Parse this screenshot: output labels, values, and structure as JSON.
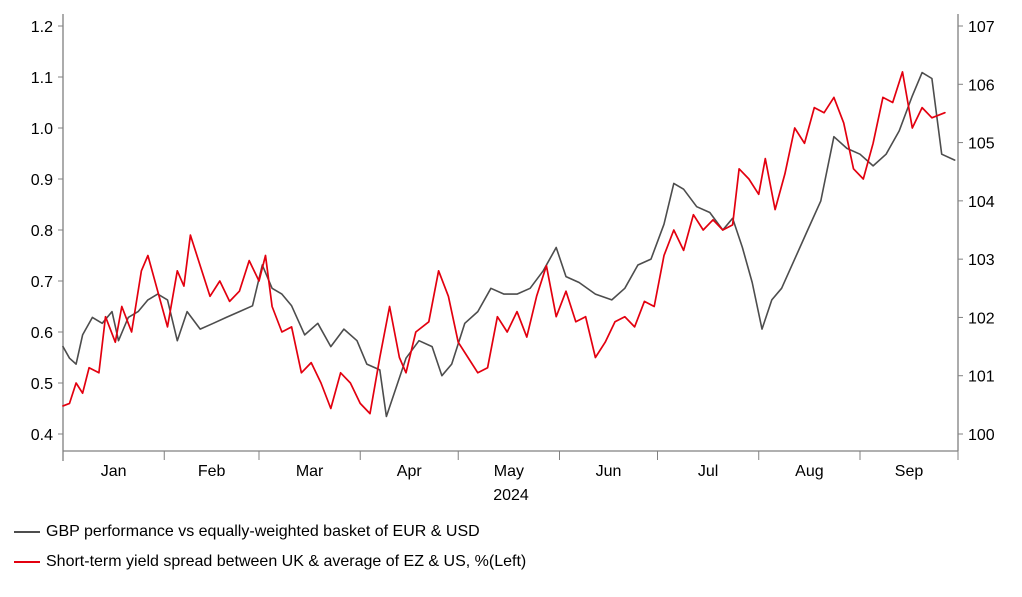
{
  "chart_data": {
    "type": "line",
    "left_axis": {
      "range": [
        0.4,
        1.2
      ],
      "ticks": [
        "0.4",
        "0.5",
        "0.6",
        "0.7",
        "0.8",
        "0.9",
        "1.0",
        "1.1",
        "1.2"
      ]
    },
    "right_axis": {
      "range": [
        100,
        107
      ],
      "ticks": [
        "100",
        "101",
        "102",
        "103",
        "104",
        "105",
        "106",
        "107"
      ]
    },
    "x_axis": {
      "months": [
        "Jan",
        "Feb",
        "Mar",
        "Apr",
        "May",
        "Jun",
        "Jul",
        "Aug",
        "Sep"
      ],
      "year_label": "2024"
    },
    "series": [
      {
        "name": "GBP performance vs equally-weighted basket of EUR & USD",
        "axis": "right",
        "color": "#4d4d4d",
        "points": [
          [
            "2024-01-01",
            101.5
          ],
          [
            "2024-01-03",
            101.3
          ],
          [
            "2024-01-05",
            101.2
          ],
          [
            "2024-01-07",
            101.7
          ],
          [
            "2024-01-10",
            102.0
          ],
          [
            "2024-01-13",
            101.9
          ],
          [
            "2024-01-16",
            102.1
          ],
          [
            "2024-01-18",
            101.6
          ],
          [
            "2024-01-21",
            102.0
          ],
          [
            "2024-01-24",
            102.1
          ],
          [
            "2024-01-27",
            102.3
          ],
          [
            "2024-01-30",
            102.4
          ],
          [
            "2024-02-02",
            102.3
          ],
          [
            "2024-02-05",
            101.6
          ],
          [
            "2024-02-08",
            102.1
          ],
          [
            "2024-02-12",
            101.8
          ],
          [
            "2024-02-16",
            101.9
          ],
          [
            "2024-02-20",
            102.0
          ],
          [
            "2024-02-24",
            102.1
          ],
          [
            "2024-02-28",
            102.2
          ],
          [
            "2024-03-02",
            102.9
          ],
          [
            "2024-03-05",
            102.5
          ],
          [
            "2024-03-08",
            102.4
          ],
          [
            "2024-03-11",
            102.2
          ],
          [
            "2024-03-15",
            101.7
          ],
          [
            "2024-03-19",
            101.9
          ],
          [
            "2024-03-23",
            101.5
          ],
          [
            "2024-03-27",
            101.8
          ],
          [
            "2024-03-31",
            101.6
          ],
          [
            "2024-04-03",
            101.2
          ],
          [
            "2024-04-07",
            101.1
          ],
          [
            "2024-04-09",
            100.3
          ],
          [
            "2024-04-12",
            100.8
          ],
          [
            "2024-04-15",
            101.3
          ],
          [
            "2024-04-19",
            101.6
          ],
          [
            "2024-04-23",
            101.5
          ],
          [
            "2024-04-26",
            101.0
          ],
          [
            "2024-04-29",
            101.2
          ],
          [
            "2024-05-03",
            101.9
          ],
          [
            "2024-05-07",
            102.1
          ],
          [
            "2024-05-11",
            102.5
          ],
          [
            "2024-05-15",
            102.4
          ],
          [
            "2024-05-19",
            102.4
          ],
          [
            "2024-05-23",
            102.5
          ],
          [
            "2024-05-27",
            102.8
          ],
          [
            "2024-05-31",
            103.2
          ],
          [
            "2024-06-03",
            102.7
          ],
          [
            "2024-06-07",
            102.6
          ],
          [
            "2024-06-12",
            102.4
          ],
          [
            "2024-06-17",
            102.3
          ],
          [
            "2024-06-21",
            102.5
          ],
          [
            "2024-06-25",
            102.9
          ],
          [
            "2024-06-29",
            103.0
          ],
          [
            "2024-07-03",
            103.6
          ],
          [
            "2024-07-06",
            104.3
          ],
          [
            "2024-07-09",
            104.2
          ],
          [
            "2024-07-13",
            103.9
          ],
          [
            "2024-07-17",
            103.8
          ],
          [
            "2024-07-21",
            103.5
          ],
          [
            "2024-07-24",
            103.7
          ],
          [
            "2024-07-27",
            103.2
          ],
          [
            "2024-07-30",
            102.6
          ],
          [
            "2024-08-02",
            101.8
          ],
          [
            "2024-08-05",
            102.3
          ],
          [
            "2024-08-08",
            102.5
          ],
          [
            "2024-08-12",
            103.0
          ],
          [
            "2024-08-16",
            103.5
          ],
          [
            "2024-08-20",
            104.0
          ],
          [
            "2024-08-24",
            105.1
          ],
          [
            "2024-08-28",
            104.9
          ],
          [
            "2024-09-01",
            104.8
          ],
          [
            "2024-09-05",
            104.6
          ],
          [
            "2024-09-09",
            104.8
          ],
          [
            "2024-09-13",
            105.2
          ],
          [
            "2024-09-17",
            105.8
          ],
          [
            "2024-09-20",
            106.2
          ],
          [
            "2024-09-23",
            106.1
          ],
          [
            "2024-09-26",
            104.8
          ],
          [
            "2024-09-30",
            104.7
          ]
        ]
      },
      {
        "name": "Short-term yield spread between UK & average of EZ & US, %(Left)",
        "axis": "left",
        "color": "#e3000f",
        "points": [
          [
            "2024-01-01",
            0.455
          ],
          [
            "2024-01-03",
            0.46
          ],
          [
            "2024-01-05",
            0.5
          ],
          [
            "2024-01-07",
            0.48
          ],
          [
            "2024-01-09",
            0.53
          ],
          [
            "2024-01-12",
            0.52
          ],
          [
            "2024-01-14",
            0.63
          ],
          [
            "2024-01-17",
            0.58
          ],
          [
            "2024-01-19",
            0.65
          ],
          [
            "2024-01-22",
            0.6
          ],
          [
            "2024-01-25",
            0.72
          ],
          [
            "2024-01-27",
            0.75
          ],
          [
            "2024-01-30",
            0.68
          ],
          [
            "2024-02-02",
            0.61
          ],
          [
            "2024-02-05",
            0.72
          ],
          [
            "2024-02-07",
            0.69
          ],
          [
            "2024-02-09",
            0.79
          ],
          [
            "2024-02-12",
            0.73
          ],
          [
            "2024-02-15",
            0.67
          ],
          [
            "2024-02-18",
            0.7
          ],
          [
            "2024-02-21",
            0.66
          ],
          [
            "2024-02-24",
            0.68
          ],
          [
            "2024-02-27",
            0.74
          ],
          [
            "2024-03-01",
            0.7
          ],
          [
            "2024-03-03",
            0.75
          ],
          [
            "2024-03-05",
            0.65
          ],
          [
            "2024-03-08",
            0.6
          ],
          [
            "2024-03-11",
            0.61
          ],
          [
            "2024-03-14",
            0.52
          ],
          [
            "2024-03-17",
            0.54
          ],
          [
            "2024-03-20",
            0.5
          ],
          [
            "2024-03-23",
            0.45
          ],
          [
            "2024-03-26",
            0.52
          ],
          [
            "2024-03-29",
            0.5
          ],
          [
            "2024-04-01",
            0.46
          ],
          [
            "2024-04-04",
            0.44
          ],
          [
            "2024-04-07",
            0.55
          ],
          [
            "2024-04-10",
            0.65
          ],
          [
            "2024-04-13",
            0.55
          ],
          [
            "2024-04-15",
            0.52
          ],
          [
            "2024-04-18",
            0.6
          ],
          [
            "2024-04-22",
            0.62
          ],
          [
            "2024-04-25",
            0.72
          ],
          [
            "2024-04-28",
            0.67
          ],
          [
            "2024-05-01",
            0.58
          ],
          [
            "2024-05-04",
            0.55
          ],
          [
            "2024-05-07",
            0.52
          ],
          [
            "2024-05-10",
            0.53
          ],
          [
            "2024-05-13",
            0.63
          ],
          [
            "2024-05-16",
            0.6
          ],
          [
            "2024-05-19",
            0.64
          ],
          [
            "2024-05-22",
            0.59
          ],
          [
            "2024-05-25",
            0.67
          ],
          [
            "2024-05-28",
            0.73
          ],
          [
            "2024-05-31",
            0.63
          ],
          [
            "2024-06-03",
            0.68
          ],
          [
            "2024-06-06",
            0.62
          ],
          [
            "2024-06-09",
            0.63
          ],
          [
            "2024-06-12",
            0.55
          ],
          [
            "2024-06-15",
            0.58
          ],
          [
            "2024-06-18",
            0.62
          ],
          [
            "2024-06-21",
            0.63
          ],
          [
            "2024-06-24",
            0.61
          ],
          [
            "2024-06-27",
            0.66
          ],
          [
            "2024-06-30",
            0.65
          ],
          [
            "2024-07-03",
            0.75
          ],
          [
            "2024-07-06",
            0.8
          ],
          [
            "2024-07-09",
            0.76
          ],
          [
            "2024-07-12",
            0.83
          ],
          [
            "2024-07-15",
            0.8
          ],
          [
            "2024-07-18",
            0.82
          ],
          [
            "2024-07-21",
            0.8
          ],
          [
            "2024-07-24",
            0.81
          ],
          [
            "2024-07-26",
            0.92
          ],
          [
            "2024-07-29",
            0.9
          ],
          [
            "2024-08-01",
            0.87
          ],
          [
            "2024-08-03",
            0.94
          ],
          [
            "2024-08-06",
            0.84
          ],
          [
            "2024-08-09",
            0.91
          ],
          [
            "2024-08-12",
            1.0
          ],
          [
            "2024-08-15",
            0.97
          ],
          [
            "2024-08-18",
            1.04
          ],
          [
            "2024-08-21",
            1.03
          ],
          [
            "2024-08-24",
            1.06
          ],
          [
            "2024-08-27",
            1.01
          ],
          [
            "2024-08-30",
            0.92
          ],
          [
            "2024-09-02",
            0.9
          ],
          [
            "2024-09-05",
            0.97
          ],
          [
            "2024-09-08",
            1.06
          ],
          [
            "2024-09-11",
            1.05
          ],
          [
            "2024-09-14",
            1.11
          ],
          [
            "2024-09-17",
            1.0
          ],
          [
            "2024-09-20",
            1.04
          ],
          [
            "2024-09-23",
            1.02
          ],
          [
            "2024-09-27",
            1.03
          ]
        ]
      }
    ],
    "legend_position": "bottom-left",
    "grid": false
  }
}
